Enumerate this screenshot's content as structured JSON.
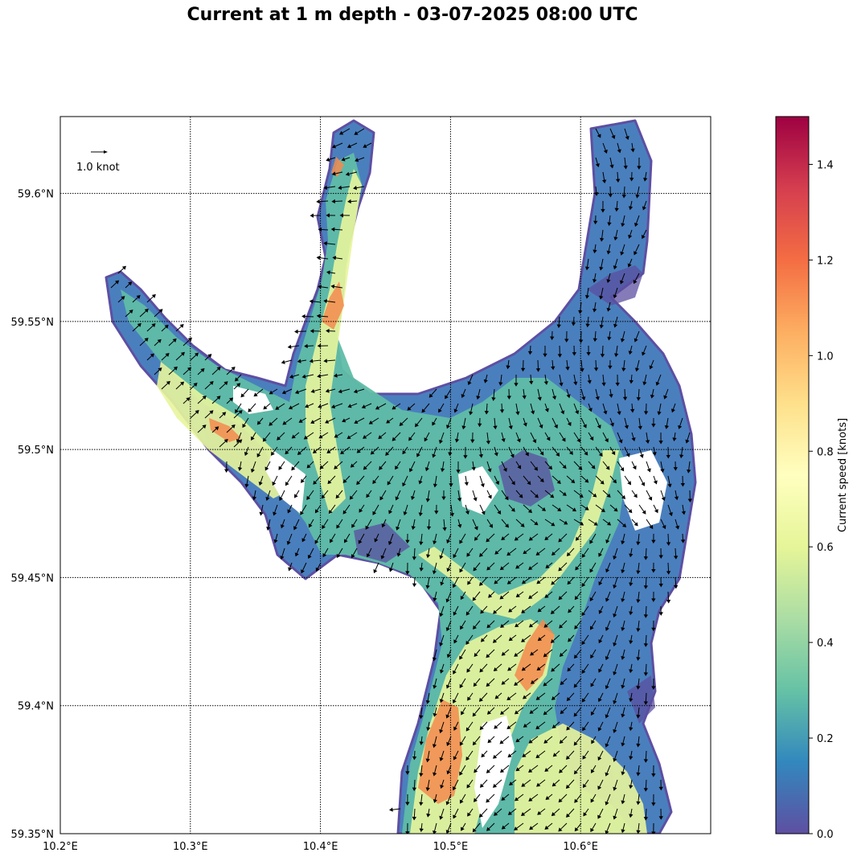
{
  "title": "Current at 1 m depth - 03-07-2025 08:00 UTC",
  "map": {
    "lon_range": [
      10.2,
      10.7
    ],
    "lat_range": [
      59.35,
      59.63
    ],
    "lon_ticks": [
      10.2,
      10.3,
      10.4,
      10.5,
      10.6
    ],
    "lon_tick_labels": [
      "10.2°E",
      "10.3°E",
      "10.4°E",
      "10.5°E",
      "10.6°E"
    ],
    "lat_ticks": [
      59.35,
      59.4,
      59.45,
      59.5,
      59.55,
      59.6
    ],
    "lat_tick_labels": [
      "59.35°N",
      "59.4°N",
      "59.45°N",
      "59.5°N",
      "59.55°N",
      "59.6°N"
    ],
    "gridlines": true
  },
  "quiver_key": {
    "label": "1.0 knot",
    "value_knots": 1.0
  },
  "colorbar": {
    "label": "Current speed [knots]",
    "range": [
      0,
      1.5
    ],
    "ticks": [
      0.0,
      0.2,
      0.4,
      0.6,
      0.8,
      1.0,
      1.2,
      1.4
    ],
    "tick_labels": [
      "0.0",
      "0.2",
      "0.4",
      "0.6",
      "0.8",
      "1.0",
      "1.2",
      "1.4"
    ],
    "colormap": "Spectral_r",
    "colors": [
      "#5e4fa2",
      "#3288bd",
      "#66c2a5",
      "#abdda4",
      "#e6f598",
      "#ffffbf",
      "#fee08b",
      "#fdae61",
      "#f46d43",
      "#d53e4f",
      "#9e0142"
    ]
  }
}
